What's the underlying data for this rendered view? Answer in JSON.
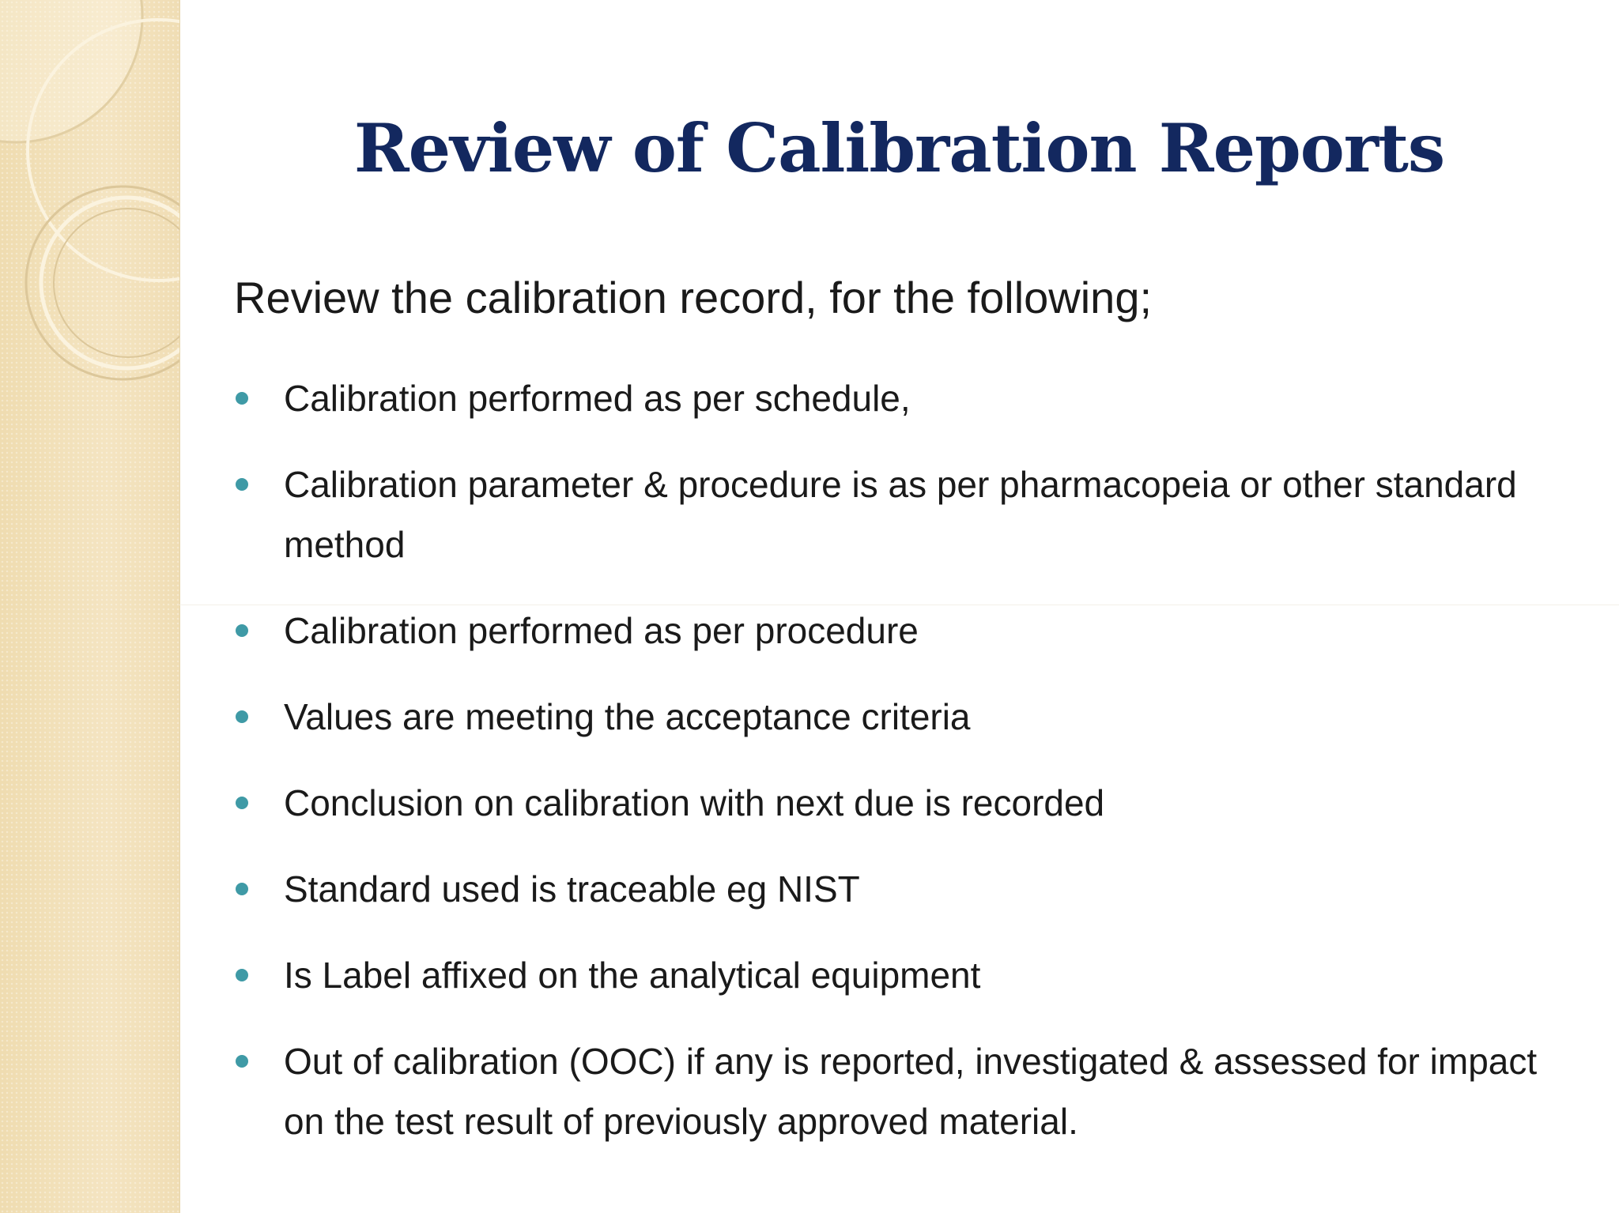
{
  "slide": {
    "title": "Review of Calibration Reports",
    "intro": "Review the calibration record, for the following;",
    "bullets": [
      {
        "text": "Calibration  performed as per schedule,"
      },
      {
        "text": "Calibration parameter & procedure is as per pharmacopeia or other standard method"
      },
      {
        "text": "Calibration performed as per procedure"
      },
      {
        "text": "Values are meeting the acceptance criteria"
      },
      {
        "text": "Conclusion on calibration with next due is recorded"
      },
      {
        "text": "Standard used is traceable eg NIST"
      },
      {
        "text": "Is Label affixed on the analytical equipment"
      },
      {
        "text": "Out of calibration  (OOC) if any is reported,  investigated  & assessed for  impact on the test result of previously approved material."
      }
    ]
  },
  "colors": {
    "title": "#13285f",
    "body_text": "#1a1a1a",
    "bullet": "#3f9aa6",
    "side_band": "#f1dfb6"
  },
  "icons": {
    "bullet": "teal-dot-icon",
    "decoration": "concentric-circles-decoration"
  }
}
